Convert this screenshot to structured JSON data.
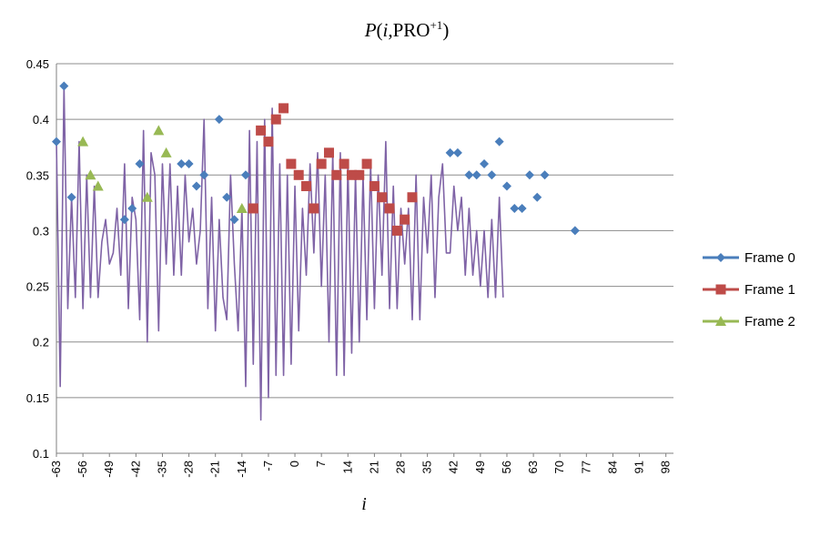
{
  "chart_data": {
    "type": "line",
    "title": {
      "p": "P",
      "paren_open": "(",
      "i": "i",
      "sep": ",PRO",
      "sup": "+1",
      "paren_close": ")"
    },
    "xlabel": "i",
    "ylabel": "",
    "ylim": [
      0.1,
      0.45
    ],
    "yticks": [
      "0.1",
      "0.15",
      "0.2",
      "0.25",
      "0.3",
      "0.35",
      "0.4",
      "0.45"
    ],
    "xlim": [
      -63,
      100
    ],
    "xticks": [
      -63,
      -56,
      -49,
      -42,
      -35,
      -28,
      -21,
      -14,
      -7,
      0,
      7,
      14,
      21,
      28,
      35,
      42,
      49,
      56,
      63,
      70,
      77,
      84,
      91,
      98
    ],
    "grid": "horizontal",
    "legend_position": "right",
    "line_color": "#7f63a6",
    "x_start": -63,
    "values": [
      0.38,
      0.16,
      0.43,
      0.23,
      0.33,
      0.24,
      0.38,
      0.23,
      0.35,
      0.24,
      0.34,
      0.24,
      0.29,
      0.31,
      0.27,
      0.28,
      0.32,
      0.26,
      0.36,
      0.23,
      0.33,
      0.31,
      0.22,
      0.39,
      0.2,
      0.37,
      0.35,
      0.21,
      0.36,
      0.27,
      0.36,
      0.26,
      0.34,
      0.26,
      0.35,
      0.29,
      0.32,
      0.27,
      0.3,
      0.4,
      0.23,
      0.33,
      0.21,
      0.31,
      0.24,
      0.22,
      0.35,
      0.27,
      0.21,
      0.32,
      0.16,
      0.39,
      0.18,
      0.38,
      0.13,
      0.4,
      0.15,
      0.41,
      0.17,
      0.36,
      0.17,
      0.35,
      0.18,
      0.34,
      0.21,
      0.32,
      0.26,
      0.36,
      0.28,
      0.37,
      0.25,
      0.35,
      0.2,
      0.37,
      0.17,
      0.37,
      0.17,
      0.36,
      0.19,
      0.35,
      0.2,
      0.35,
      0.22,
      0.36,
      0.23,
      0.35,
      0.26,
      0.38,
      0.23,
      0.34,
      0.23,
      0.32,
      0.27,
      0.32,
      0.22,
      0.35,
      0.22,
      0.33,
      0.28,
      0.35,
      0.24,
      0.33,
      0.36,
      0.28,
      0.28,
      0.34,
      0.3,
      0.33,
      0.26,
      0.32,
      0.26,
      0.3,
      0.25,
      0.3,
      0.24,
      0.31,
      0.24,
      0.33,
      0.24
    ],
    "series": [
      {
        "name": "Frame 0",
        "color": "#4a7ebb",
        "marker": "diamond",
        "points": [
          [
            -63,
            0.38
          ],
          [
            -61,
            0.43
          ],
          [
            -59,
            0.33
          ],
          [
            -45,
            0.31
          ],
          [
            -43,
            0.32
          ],
          [
            -41,
            0.36
          ],
          [
            -30,
            0.36
          ],
          [
            -28,
            0.36
          ],
          [
            -26,
            0.34
          ],
          [
            -24,
            0.35
          ],
          [
            -20,
            0.4
          ],
          [
            -18,
            0.33
          ],
          [
            -16,
            0.31
          ],
          [
            -13,
            0.35
          ],
          [
            41,
            0.37
          ],
          [
            43,
            0.37
          ],
          [
            46,
            0.35
          ],
          [
            48,
            0.35
          ],
          [
            50,
            0.36
          ],
          [
            52,
            0.35
          ],
          [
            54,
            0.38
          ],
          [
            56,
            0.34
          ],
          [
            58,
            0.32
          ],
          [
            60,
            0.32
          ],
          [
            62,
            0.35
          ],
          [
            64,
            0.33
          ],
          [
            66,
            0.35
          ],
          [
            74,
            0.3
          ]
        ]
      },
      {
        "name": "Frame 1",
        "color": "#be4b48",
        "marker": "square",
        "points": [
          [
            -11,
            0.32
          ],
          [
            -9,
            0.39
          ],
          [
            -7,
            0.38
          ],
          [
            -5,
            0.4
          ],
          [
            -3,
            0.41
          ],
          [
            -1,
            0.36
          ],
          [
            1,
            0.35
          ],
          [
            3,
            0.34
          ],
          [
            5,
            0.32
          ],
          [
            7,
            0.36
          ],
          [
            9,
            0.37
          ],
          [
            11,
            0.35
          ],
          [
            13,
            0.36
          ],
          [
            15,
            0.35
          ],
          [
            17,
            0.35
          ],
          [
            19,
            0.36
          ],
          [
            21,
            0.34
          ],
          [
            23,
            0.33
          ],
          [
            25,
            0.32
          ],
          [
            27,
            0.3
          ],
          [
            29,
            0.31
          ],
          [
            31,
            0.33
          ]
        ]
      },
      {
        "name": "Frame 2",
        "color": "#98b954",
        "marker": "triangle",
        "points": [
          [
            -56,
            0.38
          ],
          [
            -54,
            0.35
          ],
          [
            -52,
            0.34
          ],
          [
            -39,
            0.33
          ],
          [
            -36,
            0.39
          ],
          [
            -34,
            0.37
          ],
          [
            -14,
            0.32
          ]
        ]
      }
    ]
  }
}
